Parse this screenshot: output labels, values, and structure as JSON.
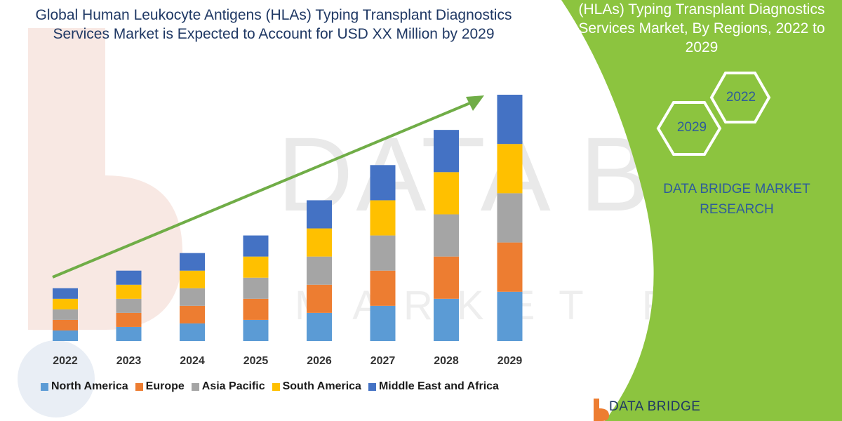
{
  "title": "Global Human Leukocyte Antigens (HLAs) Typing Transplant Diagnostics Services Market is Expected to Account for USD XX Million by 2029",
  "side_panel": {
    "title": "(HLAs) Typing Transplant Diagnostics Services Market, By Regions, 2022 to 2029",
    "hex_left": "2029",
    "hex_right": "2022",
    "brand": "DATA BRIDGE MARKET RESEARCH",
    "panel_color": "#8cc43f"
  },
  "watermark": {
    "line1": "DATA BRIDGE",
    "line2": "MARKET RESEARCH"
  },
  "bottom_logo": {
    "text": "DATA BRIDGE"
  },
  "colors": {
    "North America": "#5b9bd5",
    "Europe": "#ed7d31",
    "Asia Pacific": "#a5a5a5",
    "South America": "#ffc000",
    "Middle East and Africa": "#4472c4",
    "arrow": "#70ad47"
  },
  "chart_data": {
    "type": "bar",
    "stacked": true,
    "categories": [
      "2022",
      "2023",
      "2024",
      "2025",
      "2026",
      "2027",
      "2028",
      "2029"
    ],
    "series": [
      {
        "name": "North America",
        "values": [
          15,
          20,
          25,
          30,
          40,
          50,
          60,
          70
        ]
      },
      {
        "name": "Europe",
        "values": [
          15,
          20,
          25,
          30,
          40,
          50,
          60,
          70
        ]
      },
      {
        "name": "Asia Pacific",
        "values": [
          15,
          20,
          25,
          30,
          40,
          50,
          60,
          70
        ]
      },
      {
        "name": "South America",
        "values": [
          15,
          20,
          25,
          30,
          40,
          50,
          60,
          70
        ]
      },
      {
        "name": "Middle East and Africa",
        "values": [
          15,
          20,
          25,
          30,
          40,
          50,
          60,
          70
        ]
      }
    ],
    "ylim": [
      0,
      350
    ],
    "grid": false,
    "legend_position": "bottom",
    "trend_arrow": true
  }
}
